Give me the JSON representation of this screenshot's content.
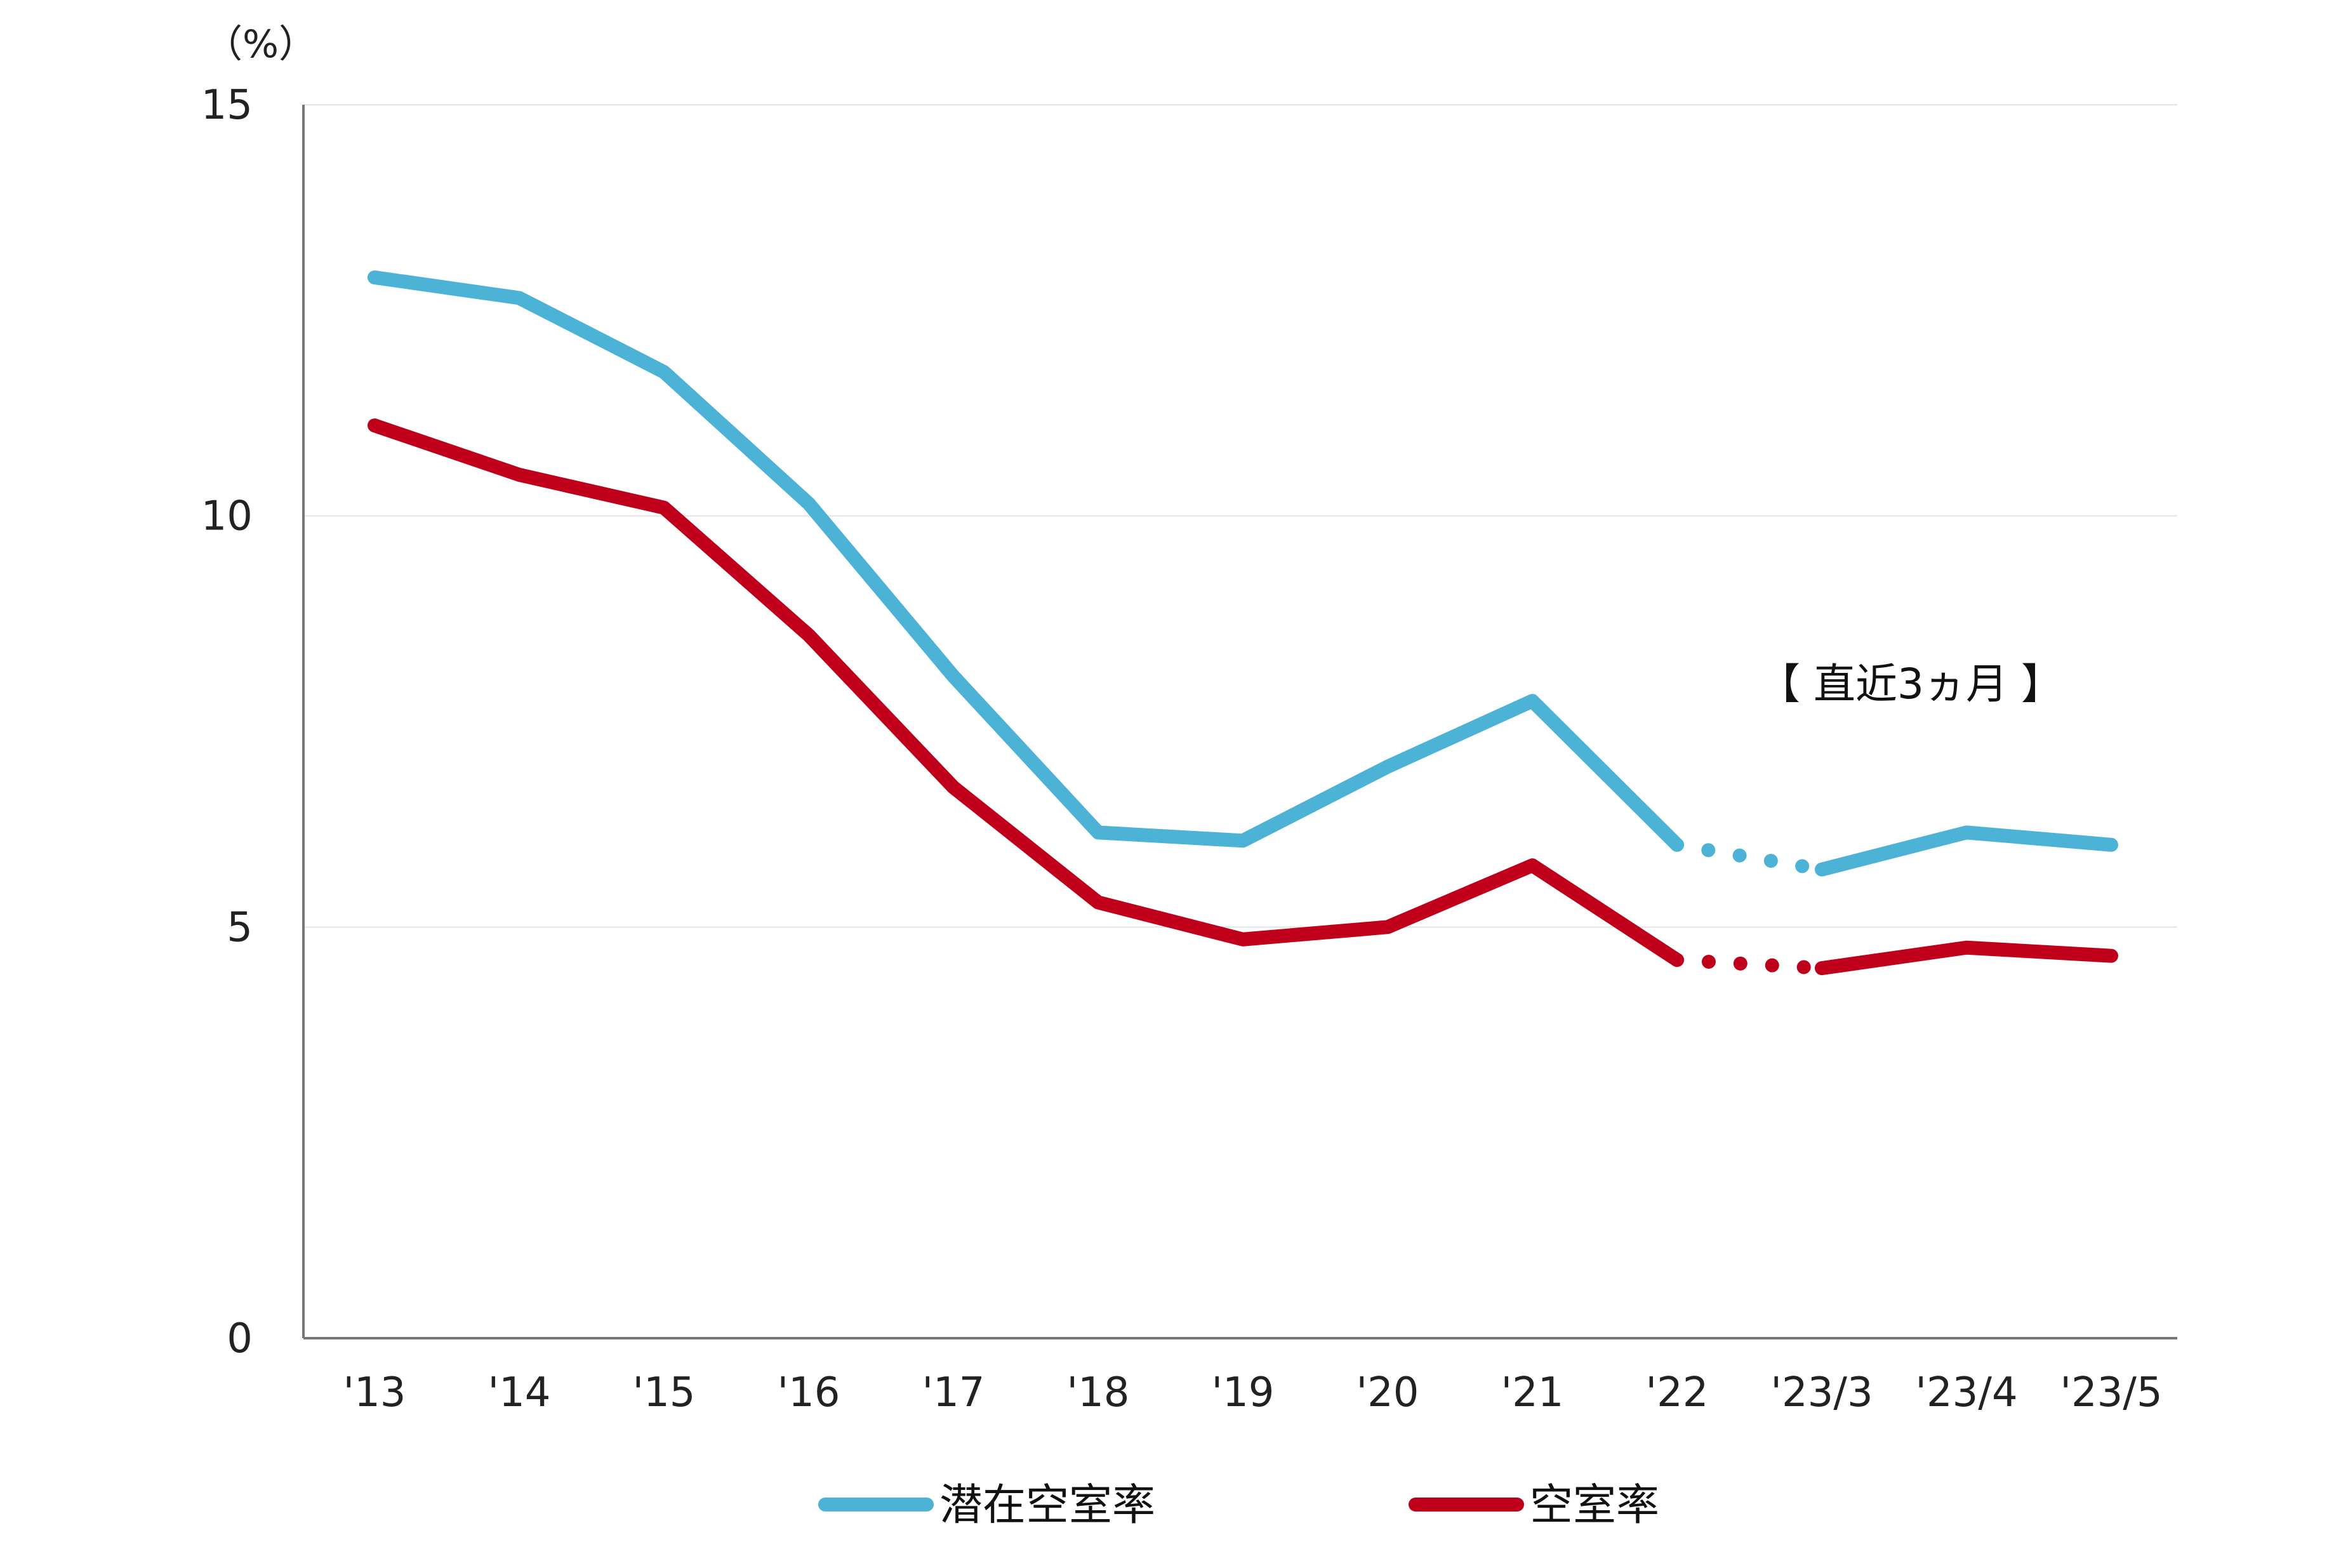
{
  "chart_data": {
    "type": "line",
    "y_unit": "（%）",
    "ylim": [
      0,
      15
    ],
    "y_ticks": [
      "0",
      "5",
      "10",
      "15"
    ],
    "categories": [
      "'13",
      "'14",
      "'15",
      "'16",
      "'17",
      "'18",
      "'19",
      "'20",
      "'21",
      "'22",
      "'23/3",
      "'23/4",
      "'23/5"
    ],
    "series": [
      {
        "name": "潜在空室率",
        "color": "#4db3d6",
        "values": [
          12.9,
          12.65,
          11.75,
          10.15,
          8.05,
          6.15,
          6.05,
          6.95,
          7.75,
          6.0,
          5.7,
          6.15,
          6.0
        ]
      },
      {
        "name": "空室率",
        "color": "#c0001a",
        "values": [
          11.1,
          10.5,
          10.1,
          8.55,
          6.7,
          5.3,
          4.85,
          5.0,
          5.75,
          4.6,
          4.5,
          4.75,
          4.65
        ]
      }
    ],
    "dotted_segment_after_category": "'22",
    "annotation": "【 直近3ヵ月 】",
    "grid": true,
    "legend_position": "bottom"
  }
}
